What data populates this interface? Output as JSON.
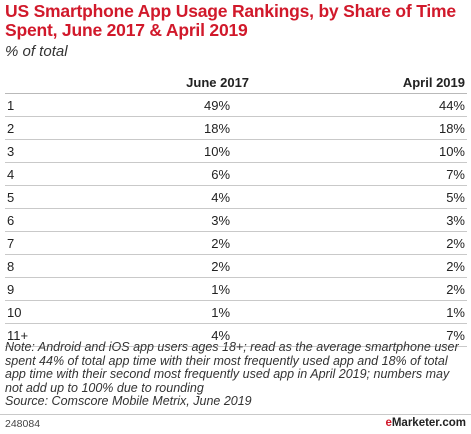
{
  "title": "US Smartphone App Usage Rankings, by Share of Time Spent, June 2017 & April 2019",
  "subtitle": "% of total",
  "chart_data": {
    "type": "table",
    "columns": [
      "",
      "June 2017",
      "April 2019"
    ],
    "rows": [
      {
        "rank": "1",
        "june_2017": "49%",
        "april_2019": "44%"
      },
      {
        "rank": "2",
        "june_2017": "18%",
        "april_2019": "18%"
      },
      {
        "rank": "3",
        "june_2017": "10%",
        "april_2019": "10%"
      },
      {
        "rank": "4",
        "june_2017": "6%",
        "april_2019": "7%"
      },
      {
        "rank": "5",
        "june_2017": "4%",
        "april_2019": "5%"
      },
      {
        "rank": "6",
        "june_2017": "3%",
        "april_2019": "3%"
      },
      {
        "rank": "7",
        "june_2017": "2%",
        "april_2019": "2%"
      },
      {
        "rank": "8",
        "june_2017": "2%",
        "april_2019": "2%"
      },
      {
        "rank": "9",
        "june_2017": "1%",
        "april_2019": "2%"
      },
      {
        "rank": "10",
        "june_2017": "1%",
        "april_2019": "1%"
      },
      {
        "rank": "11+",
        "june_2017": "4%",
        "april_2019": "7%"
      }
    ]
  },
  "note": "Note: Android and iOS app users ages 18+; read as the average smartphone user spent 44% of total app time with their most frequently used app and 18% of total app time with their second most frequently used app in April 2019; numbers may not add up to 100% due to rounding",
  "source": "Source: Comscore Mobile Metrix, June 2019",
  "footer": {
    "chart_id": "248084",
    "brand_prefix": "e",
    "brand_rest": "Marketer",
    "brand_suffix": ".com",
    "brand_color": "#d1192b"
  }
}
